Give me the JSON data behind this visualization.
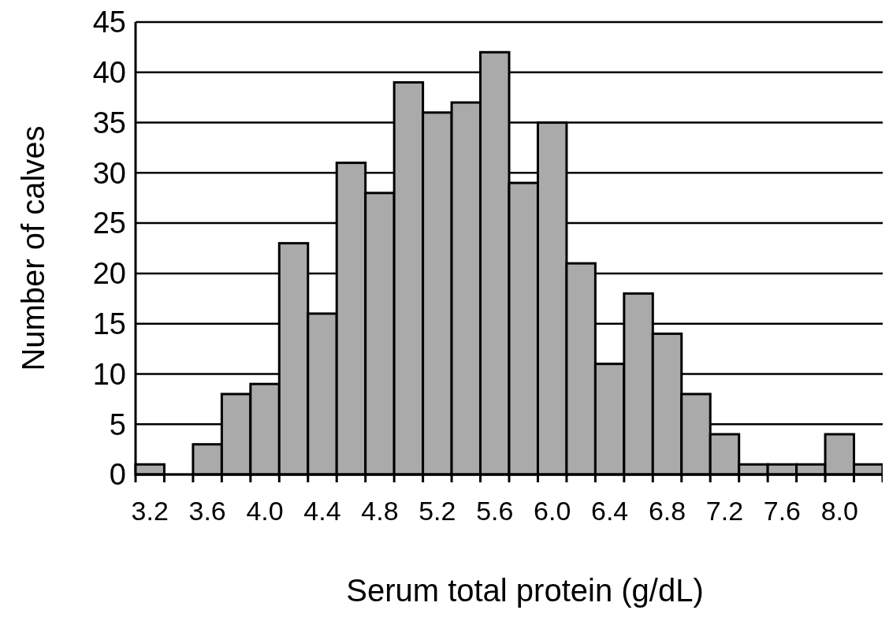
{
  "chart_data": {
    "type": "histogram",
    "xlabel": "Serum total protein (g/dL)",
    "ylabel": "Number of calves",
    "bins": [
      3.1,
      3.3,
      3.5,
      3.7,
      3.9,
      4.1,
      4.3,
      4.5,
      4.7,
      4.9,
      5.1,
      5.3,
      5.5,
      5.7,
      5.9,
      6.1,
      6.3,
      6.5,
      6.7,
      6.9,
      7.1,
      7.3,
      7.5,
      7.7,
      7.9,
      8.1,
      8.3
    ],
    "values": [
      1,
      0,
      3,
      8,
      9,
      23,
      16,
      31,
      28,
      39,
      36,
      37,
      42,
      29,
      35,
      21,
      11,
      18,
      14,
      8,
      4,
      1,
      1,
      1,
      4,
      1
    ],
    "color": "#aaaaaa",
    "xlim": [
      3.1,
      8.3
    ],
    "xticks": [
      3.2,
      3.6,
      {
        "value": 4,
        "label": "4.0"
      },
      4.4,
      4.8,
      5.2,
      5.6,
      {
        "value": 6,
        "label": "6.0"
      },
      6.4,
      6.8,
      7.2,
      7.6,
      {
        "value": 8,
        "label": "8.0"
      }
    ],
    "ylim": [
      0,
      45
    ],
    "yticks": [
      0,
      5,
      10,
      15,
      20,
      25,
      30,
      35,
      40,
      45
    ],
    "grid": "y"
  }
}
